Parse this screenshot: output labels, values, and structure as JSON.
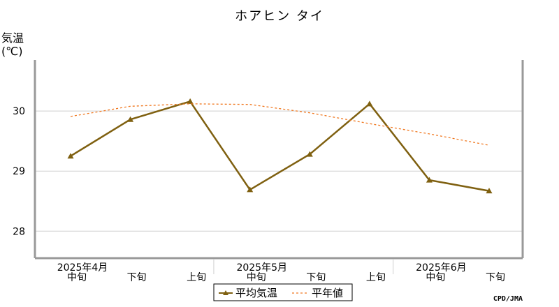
{
  "chart_data": {
    "type": "line",
    "title": "ホアヒン タイ",
    "ylabel_line1": "気温",
    "ylabel_line2": "(℃)",
    "ylim": [
      27.55,
      30.85
    ],
    "yticks": [
      28,
      29,
      30
    ],
    "grid": true,
    "categories": [
      "中旬",
      "下旬",
      "上旬",
      "中旬",
      "下旬",
      "上旬",
      "中旬",
      "下旬"
    ],
    "month_labels": [
      {
        "label": "2025年4月",
        "category_index": 0
      },
      {
        "label": "2025年5月",
        "category_index": 3
      },
      {
        "label": "2025年6月",
        "category_index": 6
      }
    ],
    "series": [
      {
        "name": "平均気温",
        "color": "#7f6010",
        "marker": "triangle",
        "values": [
          29.25,
          29.86,
          30.16,
          28.69,
          29.28,
          30.12,
          28.85,
          28.67
        ]
      },
      {
        "name": "平年値",
        "color": "#f07820",
        "style": "dashed",
        "values": [
          29.91,
          30.08,
          30.12,
          30.11,
          29.97,
          29.79,
          29.62,
          29.43
        ]
      }
    ],
    "legend_position": "bottom-center",
    "credit": "CPD/JMA"
  }
}
